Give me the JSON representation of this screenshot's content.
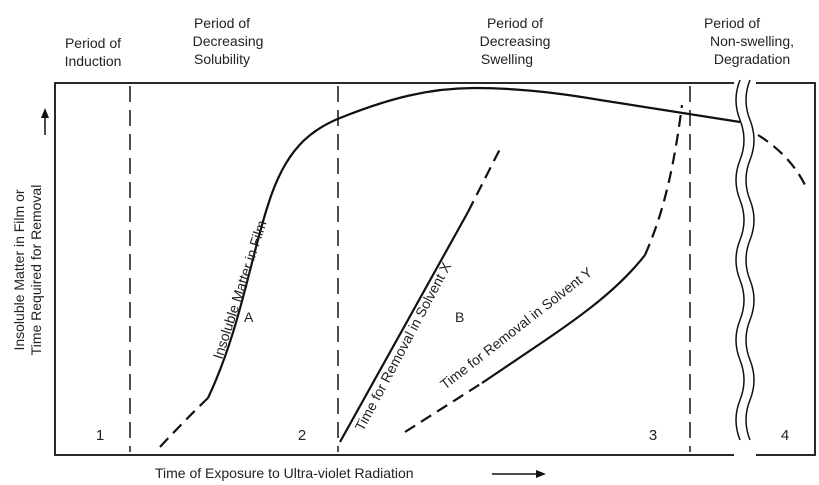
{
  "periods": [
    {
      "label": [
        "Period of",
        "Induction"
      ]
    },
    {
      "label": [
        "Period of",
        "Decreasing",
        "Solubility"
      ]
    },
    {
      "label": [
        "Period of",
        "Decreasing",
        "Swelling"
      ]
    },
    {
      "label": [
        "Period of",
        "Non-swelling,",
        "Degradation"
      ]
    }
  ],
  "regions": [
    "1",
    "2",
    "3",
    "4"
  ],
  "curves": [
    {
      "name": "Insoluble Matter in Film",
      "letter": "A"
    },
    {
      "name": "Time for Removal in Solvent X",
      "letter": "B"
    },
    {
      "name": "Time for Removal in Solvent Y"
    }
  ],
  "y_axis": {
    "label": [
      "Insoluble Matter in Film or",
      "Time Required for Removal"
    ]
  },
  "x_axis": {
    "label": "Time of Exposure to Ultra-violet Radiation"
  }
}
